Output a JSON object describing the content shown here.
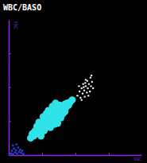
{
  "chart_data": {
    "type": "scatter",
    "title": "WBC/BASO",
    "x_label": "SSC",
    "y_label": "FSC",
    "xlim": [
      0,
      255
    ],
    "ylim": [
      0,
      255
    ],
    "xticks": [
      64,
      128,
      192
    ],
    "yticks": [
      64,
      128,
      192
    ],
    "tick_labels": false,
    "grid": false,
    "marker": "circle",
    "series": [
      {
        "color": "#2fe3e8",
        "x": [
          50,
          55,
          58,
          60,
          62,
          65,
          66,
          68,
          70,
          70,
          72,
          73,
          74,
          75,
          76,
          77,
          78,
          79,
          80,
          81,
          82,
          83,
          84,
          85,
          86,
          87,
          88,
          89,
          90,
          91,
          92,
          93,
          94,
          95,
          96,
          97,
          98,
          99,
          100,
          102,
          104,
          106,
          108,
          110,
          112,
          115,
          118,
          122,
          45,
          42,
          48,
          52,
          56,
          60,
          64,
          68,
          72,
          76,
          84,
          90,
          66,
          94,
          100,
          104,
          58,
          54,
          108,
          62,
          80,
          88
        ],
        "values": [
          45,
          40,
          52,
          48,
          58,
          50,
          62,
          55,
          60,
          68,
          52,
          64,
          72,
          58,
          66,
          76,
          62,
          70,
          80,
          66,
          74,
          60,
          78,
          70,
          84,
          66,
          76,
          88,
          72,
          80,
          90,
          76,
          84,
          70,
          88,
          80,
          94,
          76,
          86,
          82,
          92,
          86,
          96,
          90,
          98,
          94,
          100,
          104,
          40,
          32,
          36,
          46,
          44,
          40,
          44,
          46,
          78,
          84,
          92,
          98,
          72,
          60,
          70,
          78,
          62,
          54,
          82,
          36,
          52,
          58
        ]
      },
      {
        "color": "#f2f2f2",
        "x": [
          132,
          136,
          138,
          140,
          142,
          143,
          145,
          146,
          148,
          150,
          151,
          152,
          154,
          156,
          157,
          158,
          160,
          162,
          140,
          148,
          144,
          153,
          135,
          159,
          147
        ],
        "values": [
          112,
          120,
          108,
          126,
          116,
          134,
          122,
          110,
          130,
          118,
          140,
          126,
          134,
          120,
          146,
          130,
          138,
          126,
          104,
          142,
          128,
          112,
          130,
          150,
          136
        ]
      },
      {
        "color": "#2a3bd6",
        "x": [
          4,
          6,
          8,
          10,
          12,
          14,
          16,
          18,
          20,
          22,
          24,
          26,
          8,
          28,
          15
        ],
        "values": [
          3,
          8,
          2,
          12,
          5,
          9,
          3,
          14,
          6,
          10,
          4,
          8,
          18,
          2,
          20
        ]
      }
    ]
  }
}
